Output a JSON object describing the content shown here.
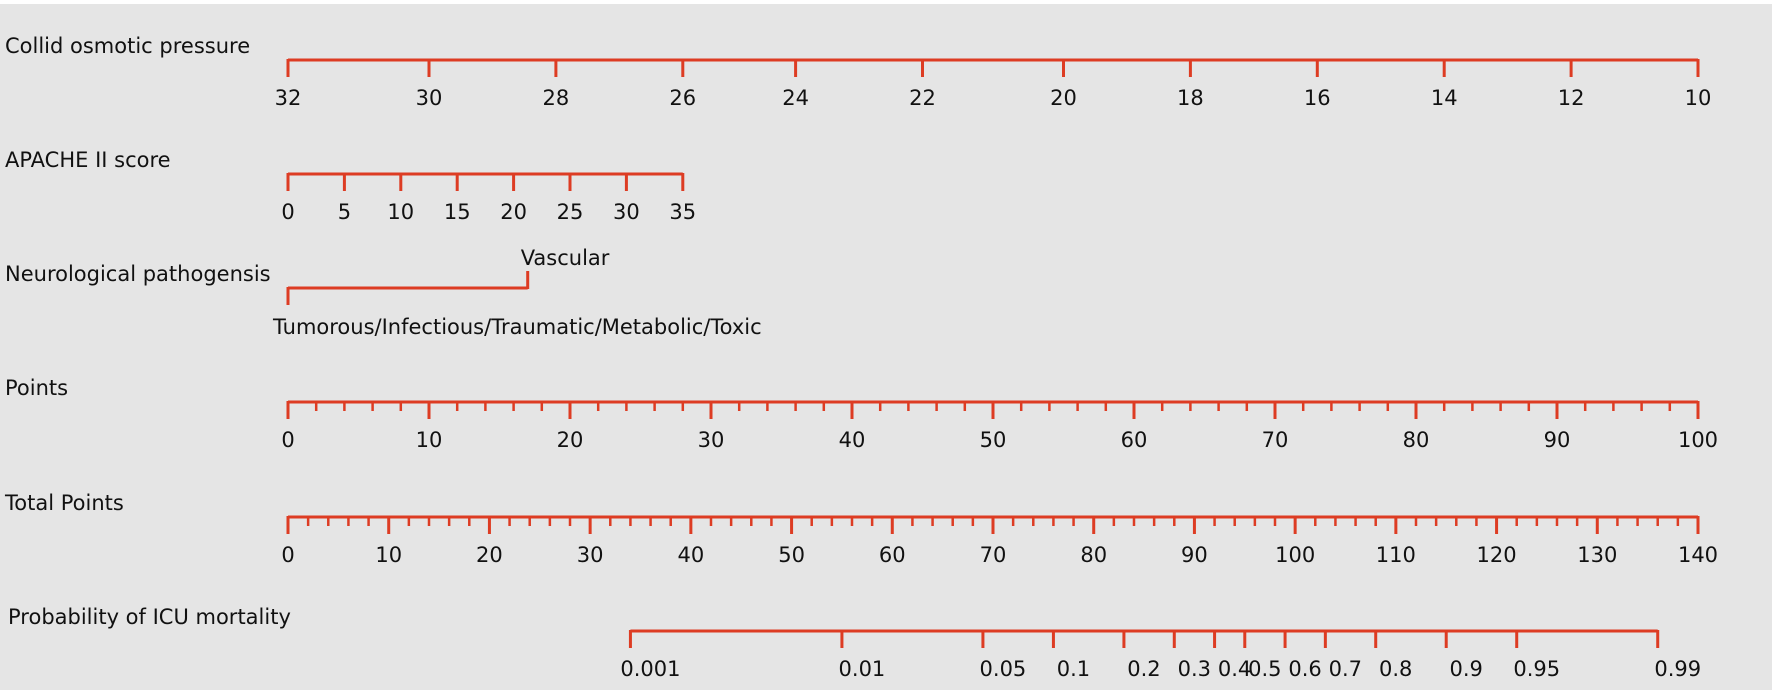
{
  "colors": {
    "panel": "#e5e5e5",
    "axis": "#dd3c23",
    "text": "#111111"
  },
  "chart_data": {
    "type": "nomogram",
    "title": "",
    "scales": [
      {
        "id": "cop",
        "name": "Collid osmotic pressure",
        "ticks": [
          {
            "value": 32,
            "points": 0,
            "label": "32"
          },
          {
            "value": 30,
            "points": 10,
            "label": "30"
          },
          {
            "value": 28,
            "points": 19,
            "label": "28"
          },
          {
            "value": 26,
            "points": 28,
            "label": "26"
          },
          {
            "value": 24,
            "points": 36,
            "label": "24"
          },
          {
            "value": 22,
            "points": 45,
            "label": "22"
          },
          {
            "value": 20,
            "points": 55,
            "label": "20"
          },
          {
            "value": 18,
            "points": 64,
            "label": "18"
          },
          {
            "value": 16,
            "points": 73,
            "label": "16"
          },
          {
            "value": 14,
            "points": 82,
            "label": "14"
          },
          {
            "value": 12,
            "points": 91,
            "label": "12"
          },
          {
            "value": 10,
            "points": 100,
            "label": "10"
          }
        ]
      },
      {
        "id": "apache",
        "name": "APACHE II score",
        "ticks": [
          {
            "value": 0,
            "points": 0,
            "label": "0"
          },
          {
            "value": 5,
            "points": 4,
            "label": "5"
          },
          {
            "value": 10,
            "points": 8,
            "label": "10"
          },
          {
            "value": 15,
            "points": 12,
            "label": "15"
          },
          {
            "value": 20,
            "points": 16,
            "label": "20"
          },
          {
            "value": 25,
            "points": 20,
            "label": "25"
          },
          {
            "value": 30,
            "points": 24,
            "label": "30"
          },
          {
            "value": 35,
            "points": 28,
            "label": "35"
          }
        ]
      },
      {
        "id": "patho",
        "name": "Neurological pathogensis",
        "levels": [
          {
            "label": "Tumorous/Infectious/Traumatic/Metabolic/Toxic",
            "points": 0,
            "label_position": "below"
          },
          {
            "label": "Vascular",
            "points": 17,
            "label_position": "above"
          }
        ]
      },
      {
        "id": "points",
        "name": "Points",
        "range": [
          0,
          100
        ],
        "major_ticks": [
          0,
          10,
          20,
          30,
          40,
          50,
          60,
          70,
          80,
          90,
          100
        ],
        "minor_step": 2
      },
      {
        "id": "total",
        "name": "Total Points",
        "range": [
          0,
          140
        ],
        "major_ticks": [
          0,
          10,
          20,
          30,
          40,
          50,
          60,
          70,
          80,
          90,
          100,
          110,
          120,
          130,
          140
        ],
        "minor_step": 2
      },
      {
        "id": "prob",
        "name": "Probability of ICU mortality",
        "ticks": [
          {
            "label": "0.001",
            "total_points": 34
          },
          {
            "label": "0.01",
            "total_points": 55
          },
          {
            "label": "0.05",
            "total_points": 69
          },
          {
            "label": "0.1",
            "total_points": 76
          },
          {
            "label": "0.2",
            "total_points": 83
          },
          {
            "label": "0.3",
            "total_points": 88
          },
          {
            "label": "0.4",
            "total_points": 92
          },
          {
            "label": "0.5",
            "total_points": 95
          },
          {
            "label": "0.6",
            "total_points": 99
          },
          {
            "label": "0.7",
            "total_points": 103
          },
          {
            "label": "0.8",
            "total_points": 108
          },
          {
            "label": "0.9",
            "total_points": 115
          },
          {
            "label": "0.95",
            "total_points": 122
          },
          {
            "label": "0.99",
            "total_points": 136
          }
        ]
      }
    ]
  }
}
